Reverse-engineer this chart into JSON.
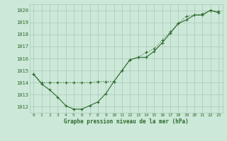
{
  "line1_x": [
    0,
    1,
    2,
    3,
    4,
    5,
    6,
    7,
    8,
    9,
    10,
    11,
    12,
    13,
    14,
    15,
    16,
    17,
    18,
    19,
    20,
    21,
    22,
    23
  ],
  "line1_y": [
    1014.7,
    1013.9,
    1013.4,
    1012.8,
    1012.1,
    1011.8,
    1011.8,
    1012.1,
    1012.4,
    1013.1,
    1014.1,
    1015.0,
    1015.9,
    1016.1,
    1016.1,
    1016.6,
    1017.3,
    1018.1,
    1018.9,
    1019.2,
    1019.6,
    1019.6,
    1020.0,
    1019.8
  ],
  "line2_x": [
    0,
    1,
    2,
    3,
    4,
    5,
    6,
    7,
    8,
    9,
    10,
    11,
    12,
    13,
    14,
    15,
    16,
    17,
    18,
    19,
    20,
    21,
    22,
    23
  ],
  "line2_y": [
    1014.7,
    1014.0,
    1014.0,
    1014.0,
    1014.0,
    1014.0,
    1014.0,
    1014.0,
    1014.1,
    1014.1,
    1014.1,
    1015.0,
    1015.9,
    1016.1,
    1016.5,
    1016.8,
    1017.5,
    1018.2,
    1018.9,
    1019.5,
    1019.6,
    1019.7,
    1020.0,
    1019.9
  ],
  "line_color": "#2d6a2d",
  "bg_color": "#cce8d8",
  "grid_color": "#aac8b8",
  "xlabel": "Graphe pression niveau de la mer (hPa)",
  "ylim": [
    1011.5,
    1020.5
  ],
  "xlim": [
    -0.5,
    23.5
  ],
  "yticks": [
    1012,
    1013,
    1014,
    1015,
    1016,
    1017,
    1018,
    1019,
    1020
  ],
  "xticks": [
    0,
    1,
    2,
    3,
    4,
    5,
    6,
    7,
    8,
    9,
    10,
    11,
    12,
    13,
    14,
    15,
    16,
    17,
    18,
    19,
    20,
    21,
    22,
    23
  ]
}
